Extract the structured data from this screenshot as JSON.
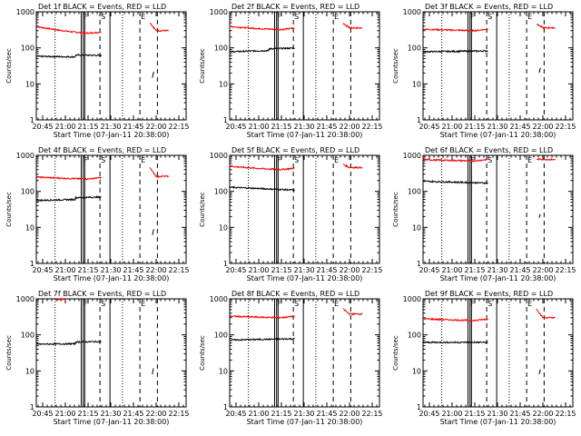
{
  "figure": {
    "xlabel": "Start Time (07-Jan-11 20:38:00)",
    "ylabel": "Counts/sec"
  },
  "chart_data": [
    {
      "type": "line",
      "title": "Det 1f BLACK = Events, RED = LLD",
      "xlabel": "Start Time (07-Jan-11 20:38:00)",
      "ylabel": "Counts/sec",
      "y_scale": "log",
      "ylim": [
        1,
        1000
      ],
      "xticks": [
        "20:45",
        "21:00",
        "21:15",
        "21:30",
        "21:45",
        "22:00",
        "22:15"
      ],
      "yticks": [
        "1",
        "10",
        "100",
        "1000"
      ],
      "series": [
        {
          "name": "RED = LLD",
          "color": "#ff0000",
          "segments": [
            {
              "x": [
                0,
                26
              ],
              "y": [
                390,
                250
              ],
              "shape": "gentle"
            },
            {
              "x": [
                45.5,
                53
              ],
              "y": [
                500,
                300
              ],
              "shape": "spike"
            }
          ]
        },
        {
          "name": "BLACK = Events",
          "color": "#000000",
          "segments": [
            {
              "x": [
                0,
                26
              ],
              "y": [
                58,
                55
              ],
              "shape": "bump"
            },
            {
              "x": [
                46.5,
                47
              ],
              "y": [
                15,
                22
              ],
              "shape": "flat"
            }
          ]
        }
      ]
    },
    {
      "type": "line",
      "title": "Det 2f BLACK = Events, RED = LLD",
      "xlabel": "Start Time (07-Jan-11 20:38:00)",
      "ylabel": "Counts/sec",
      "y_scale": "log",
      "ylim": [
        1,
        1000
      ],
      "xticks": [
        "20:45",
        "21:00",
        "21:15",
        "21:30",
        "21:45",
        "22:00",
        "22:15"
      ],
      "yticks": [
        "1",
        "10",
        "100",
        "1000"
      ],
      "series": [
        {
          "name": "RED = LLD",
          "color": "#ff0000",
          "segments": [
            {
              "x": [
                0,
                26
              ],
              "y": [
                390,
                320
              ],
              "shape": "gentle"
            },
            {
              "x": [
                45.5,
                53
              ],
              "y": [
                480,
                360
              ],
              "shape": "spike"
            }
          ]
        },
        {
          "name": "BLACK = Events",
          "color": "#000000",
          "segments": [
            {
              "x": [
                0,
                26
              ],
              "y": [
                78,
                88
              ],
              "shape": "bump"
            }
          ]
        }
      ]
    },
    {
      "type": "line",
      "title": "Det 3f BLACK = Events, RED = LLD",
      "xlabel": "Start Time (07-Jan-11 20:38:00)",
      "ylabel": "Counts/sec",
      "y_scale": "log",
      "ylim": [
        1,
        1000
      ],
      "xticks": [
        "20:45",
        "21:00",
        "21:15",
        "21:30",
        "21:45",
        "22:00",
        "22:15"
      ],
      "yticks": [
        "1",
        "10",
        "100",
        "1000"
      ],
      "series": [
        {
          "name": "RED = LLD",
          "color": "#ff0000",
          "segments": [
            {
              "x": [
                0,
                26
              ],
              "y": [
                330,
                300
              ],
              "shape": "gentle"
            },
            {
              "x": [
                45.5,
                53
              ],
              "y": [
                460,
                360
              ],
              "shape": "spike"
            }
          ]
        },
        {
          "name": "BLACK = Events",
          "color": "#000000",
          "segments": [
            {
              "x": [
                0,
                26
              ],
              "y": [
                78,
                82
              ],
              "shape": "flat"
            },
            {
              "x": [
                46.5,
                47
              ],
              "y": [
                20,
                28
              ],
              "shape": "flat"
            }
          ]
        }
      ]
    },
    {
      "type": "line",
      "title": "Det 4f BLACK = Events, RED = LLD",
      "xlabel": "Start Time (07-Jan-11 20:38:00)",
      "ylabel": "Counts/sec",
      "y_scale": "log",
      "ylim": [
        1,
        1000
      ],
      "xticks": [
        "20:45",
        "21:00",
        "21:15",
        "21:30",
        "21:45",
        "22:00",
        "22:15"
      ],
      "yticks": [
        "1",
        "10",
        "100",
        "1000"
      ],
      "series": [
        {
          "name": "RED = LLD",
          "color": "#ff0000",
          "segments": [
            {
              "x": [
                0,
                26
              ],
              "y": [
                250,
                220
              ],
              "shape": "gentle"
            },
            {
              "x": [
                45.5,
                53
              ],
              "y": [
                450,
                260
              ],
              "shape": "spike"
            }
          ]
        },
        {
          "name": "BLACK = Events",
          "color": "#000000",
          "segments": [
            {
              "x": [
                0,
                26
              ],
              "y": [
                56,
                62
              ],
              "shape": "bump"
            },
            {
              "x": [
                46.5,
                47
              ],
              "y": [
                6,
                9
              ],
              "shape": "flat"
            }
          ]
        }
      ]
    },
    {
      "type": "line",
      "title": "Det 5f BLACK = Events, RED = LLD",
      "xlabel": "Start Time (07-Jan-11 20:38:00)",
      "ylabel": "Counts/sec",
      "y_scale": "log",
      "ylim": [
        1,
        1000
      ],
      "xticks": [
        "20:45",
        "21:00",
        "21:15",
        "21:30",
        "21:45",
        "22:00",
        "22:15"
      ],
      "yticks": [
        "1",
        "10",
        "100",
        "1000"
      ],
      "series": [
        {
          "name": "RED = LLD",
          "color": "#ff0000",
          "segments": [
            {
              "x": [
                0,
                26
              ],
              "y": [
                500,
                400
              ],
              "shape": "gentle"
            },
            {
              "x": [
                45.5,
                53
              ],
              "y": [
                560,
                460
              ],
              "shape": "spike"
            }
          ]
        },
        {
          "name": "BLACK = Events",
          "color": "#000000",
          "segments": [
            {
              "x": [
                0,
                26
              ],
              "y": [
                130,
                108
              ],
              "shape": "flat"
            }
          ]
        }
      ]
    },
    {
      "type": "line",
      "title": "Det 6f BLACK = Events, RED = LLD",
      "xlabel": "Start Time (07-Jan-11 20:38:00)",
      "ylabel": "Counts/sec",
      "y_scale": "log",
      "ylim": [
        1,
        1000
      ],
      "xticks": [
        "20:45",
        "21:00",
        "21:15",
        "21:30",
        "21:45",
        "22:00",
        "22:15"
      ],
      "yticks": [
        "1",
        "10",
        "100",
        "1000"
      ],
      "series": [
        {
          "name": "RED = LLD",
          "color": "#ff0000",
          "segments": [
            {
              "x": [
                0,
                26
              ],
              "y": [
                760,
                700
              ],
              "shape": "gentle"
            },
            {
              "x": [
                45.5,
                53
              ],
              "y": [
                780,
                760
              ],
              "shape": "flat"
            }
          ]
        },
        {
          "name": "BLACK = Events",
          "color": "#000000",
          "segments": [
            {
              "x": [
                0,
                26
              ],
              "y": [
                190,
                170
              ],
              "shape": "flat"
            },
            {
              "x": [
                46.5,
                47
              ],
              "y": [
                18,
                24
              ],
              "shape": "flat"
            }
          ]
        }
      ]
    },
    {
      "type": "line",
      "title": "Det 7f BLACK = Events, RED = LLD",
      "xlabel": "Start Time (07-Jan-11 20:38:00)",
      "ylabel": "Counts/sec",
      "y_scale": "log",
      "ylim": [
        1,
        1000
      ],
      "xticks": [
        "20:45",
        "21:00",
        "21:15",
        "21:30",
        "21:45",
        "22:00",
        "22:15"
      ],
      "yticks": [
        "1",
        "10",
        "100",
        "1000"
      ],
      "series": [
        {
          "name": "RED = LLD",
          "color": "#ff0000",
          "segments": [
            {
              "x": [
                8,
                12
              ],
              "y": [
                950,
                1000
              ],
              "shape": "flat"
            }
          ]
        },
        {
          "name": "BLACK = Events",
          "color": "#000000",
          "segments": [
            {
              "x": [
                0,
                26
              ],
              "y": [
                55,
                58
              ],
              "shape": "bump"
            },
            {
              "x": [
                46.5,
                47
              ],
              "y": [
                8,
                12
              ],
              "shape": "flat"
            }
          ]
        }
      ]
    },
    {
      "type": "line",
      "title": "Det 8f BLACK = Events, RED = LLD",
      "xlabel": "Start Time (07-Jan-11 20:38:00)",
      "ylabel": "Counts/sec",
      "y_scale": "log",
      "ylim": [
        1,
        1000
      ],
      "xticks": [
        "20:45",
        "21:00",
        "21:15",
        "21:30",
        "21:45",
        "22:00",
        "22:15"
      ],
      "yticks": [
        "1",
        "10",
        "100",
        "1000"
      ],
      "series": [
        {
          "name": "RED = LLD",
          "color": "#ff0000",
          "segments": [
            {
              "x": [
                0,
                26
              ],
              "y": [
                330,
                300
              ],
              "shape": "gentle"
            },
            {
              "x": [
                45.5,
                53
              ],
              "y": [
                520,
                380
              ],
              "shape": "spike"
            }
          ]
        },
        {
          "name": "BLACK = Events",
          "color": "#000000",
          "segments": [
            {
              "x": [
                0,
                26
              ],
              "y": [
                72,
                78
              ],
              "shape": "flat"
            }
          ]
        }
      ]
    },
    {
      "type": "line",
      "title": "Det 9f BLACK = Events, RED = LLD",
      "xlabel": "Start Time (07-Jan-11 20:38:00)",
      "ylabel": "Counts/sec",
      "y_scale": "log",
      "ylim": [
        1,
        1000
      ],
      "xticks": [
        "20:45",
        "21:00",
        "21:15",
        "21:30",
        "21:45",
        "22:00",
        "22:15"
      ],
      "yticks": [
        "1",
        "10",
        "100",
        "1000"
      ],
      "series": [
        {
          "name": "RED = LLD",
          "color": "#ff0000",
          "segments": [
            {
              "x": [
                0,
                26
              ],
              "y": [
                280,
                250
              ],
              "shape": "gentle"
            },
            {
              "x": [
                45.5,
                53
              ],
              "y": [
                520,
                300
              ],
              "shape": "spike"
            }
          ]
        },
        {
          "name": "BLACK = Events",
          "color": "#000000",
          "segments": [
            {
              "x": [
                0,
                26
              ],
              "y": [
                62,
                62
              ],
              "shape": "flat"
            },
            {
              "x": [
                46.5,
                47
              ],
              "y": [
                8,
                11
              ],
              "shape": "flat"
            }
          ]
        }
      ]
    }
  ],
  "markers": {
    "dotted_x": [
      7.5,
      34.5
    ],
    "solid_x": [
      18,
      18.8,
      19.4,
      29.5
    ],
    "dashed_x": [
      25.5,
      41.5,
      48.5
    ],
    "labels": [
      {
        "x": 18.6,
        "text": "F"
      },
      {
        "x": 25.5,
        "text": "S"
      },
      {
        "x": 41.5,
        "text": "E"
      }
    ]
  }
}
